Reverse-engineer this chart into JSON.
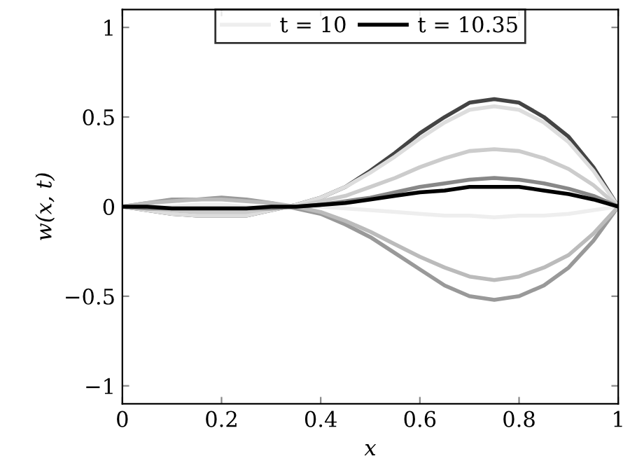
{
  "chart_data": {
    "type": "line",
    "xlabel": "x",
    "ylabel": "w(x, t)",
    "x": [
      0,
      0.05,
      0.1,
      0.15,
      0.2,
      0.25,
      0.3,
      0.35,
      0.4,
      0.45,
      0.5,
      0.55,
      0.6,
      0.65,
      0.7,
      0.75,
      0.8,
      0.85,
      0.9,
      0.95,
      1
    ],
    "series": [
      {
        "name": "t = 10",
        "color": "#eeeeee",
        "values": [
          0,
          0,
          0,
          0.01,
          0.01,
          0,
          0,
          0,
          0,
          -0.01,
          -0.02,
          -0.03,
          -0.04,
          -0.05,
          -0.05,
          -0.06,
          -0.05,
          -0.05,
          -0.04,
          -0.02,
          0
        ]
      },
      {
        "color": "#444444",
        "values": [
          0,
          -0.02,
          -0.04,
          -0.05,
          -0.05,
          -0.05,
          -0.02,
          0.01,
          0.05,
          0.11,
          0.2,
          0.3,
          0.41,
          0.5,
          0.58,
          0.6,
          0.58,
          0.5,
          0.39,
          0.22,
          0
        ]
      },
      {
        "color": "#dddddd",
        "values": [
          0,
          -0.02,
          -0.04,
          -0.05,
          -0.05,
          -0.05,
          -0.02,
          0.01,
          0.05,
          0.11,
          0.19,
          0.28,
          0.38,
          0.47,
          0.54,
          0.56,
          0.54,
          0.47,
          0.36,
          0.2,
          0
        ]
      },
      {
        "color": "#cccccc",
        "values": [
          0,
          -0.01,
          -0.02,
          -0.03,
          -0.03,
          -0.03,
          -0.01,
          0,
          0.03,
          0.06,
          0.11,
          0.16,
          0.22,
          0.27,
          0.31,
          0.32,
          0.31,
          0.27,
          0.21,
          0.12,
          0
        ]
      },
      {
        "color": "#999999",
        "values": [
          0,
          0.02,
          0.04,
          0.04,
          0.05,
          0.04,
          0.02,
          -0.01,
          -0.04,
          -0.1,
          -0.17,
          -0.26,
          -0.35,
          -0.44,
          -0.5,
          -0.52,
          -0.5,
          -0.44,
          -0.34,
          -0.19,
          0
        ]
      },
      {
        "color": "#bbbbbb",
        "values": [
          0,
          0.02,
          0.03,
          0.04,
          0.04,
          0.03,
          0.02,
          0,
          -0.03,
          -0.08,
          -0.14,
          -0.21,
          -0.28,
          -0.34,
          -0.39,
          -0.41,
          -0.39,
          -0.34,
          -0.27,
          -0.15,
          0
        ]
      },
      {
        "color": "#888888",
        "values": [
          0,
          -0.01,
          -0.01,
          -0.01,
          -0.01,
          -0.01,
          -0.01,
          0,
          0.01,
          0.03,
          0.05,
          0.08,
          0.11,
          0.13,
          0.15,
          0.16,
          0.15,
          0.13,
          0.1,
          0.06,
          0
        ]
      },
      {
        "name": "t = 10.35",
        "color": "#000000",
        "values": [
          0,
          0,
          -0.01,
          -0.01,
          -0.01,
          -0.01,
          0,
          0,
          0.01,
          0.02,
          0.04,
          0.06,
          0.08,
          0.09,
          0.11,
          0.11,
          0.11,
          0.09,
          0.07,
          0.04,
          0
        ]
      }
    ],
    "xlim": [
      0,
      1
    ],
    "ylim": [
      -1.1,
      1.1
    ],
    "xticks": [
      0,
      0.2,
      0.4,
      0.6,
      0.8,
      1
    ],
    "yticks": [
      {
        "value": -1,
        "label": "−1"
      },
      {
        "value": -0.5,
        "label": "−0.5"
      },
      0,
      0.5,
      1
    ],
    "legend": "top",
    "grid": false,
    "marker": "none",
    "line_style": "solid"
  }
}
